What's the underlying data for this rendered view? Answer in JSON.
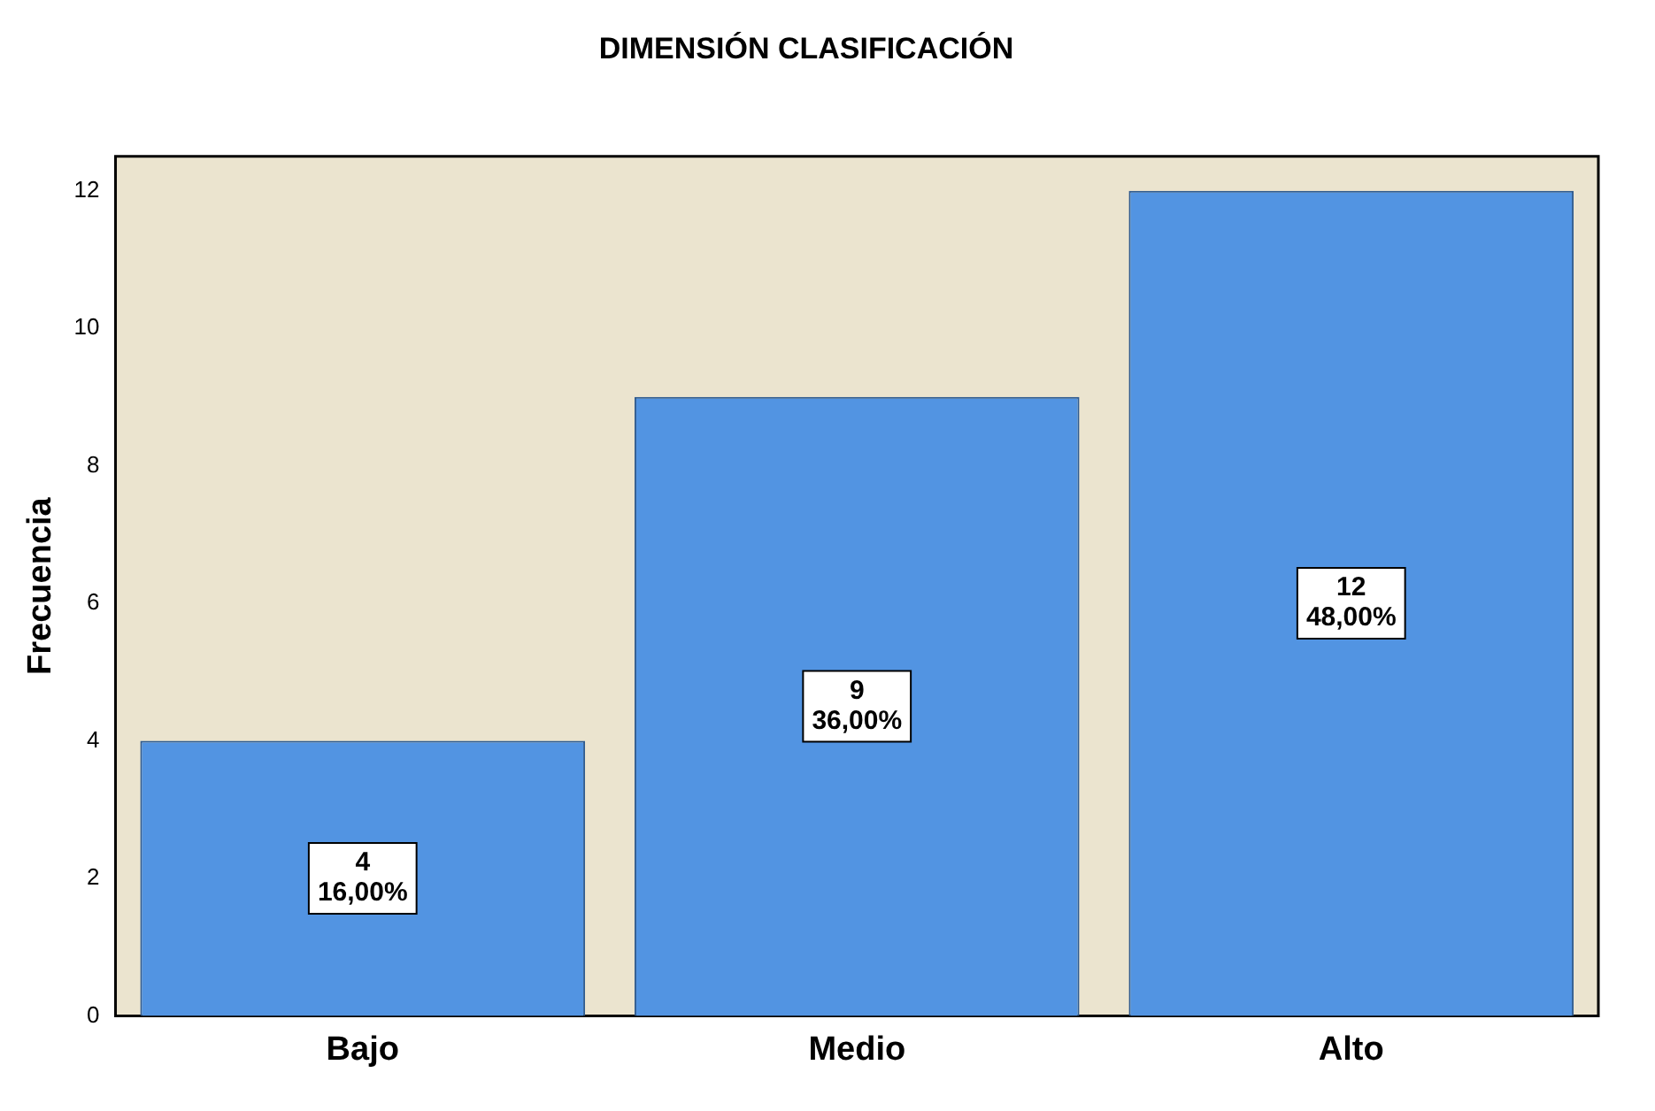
{
  "chart_data": {
    "type": "bar",
    "title": "DIMENSIÓN CLASIFICACIÓN",
    "ylabel": "Frecuencia",
    "categories": [
      "Bajo",
      "Medio",
      "Alto"
    ],
    "values": [
      4,
      9,
      12
    ],
    "color": "#5294e2",
    "value_labels": [
      "4\n16,00%",
      "9\n36,00%",
      "12\n48,00%"
    ],
    "ylim": [
      0,
      12.5
    ],
    "yticks": [
      0,
      2,
      4,
      6,
      8,
      10,
      12
    ],
    "grid": false,
    "legend": false
  }
}
